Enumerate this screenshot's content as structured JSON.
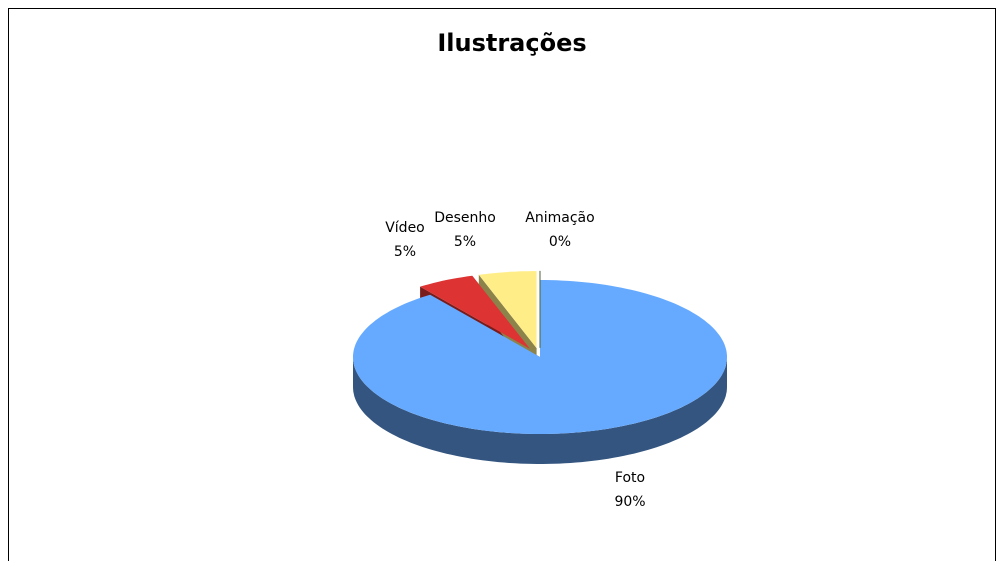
{
  "chart_data": {
    "type": "pie3d",
    "title": "Ilustrações",
    "categories": [
      "Foto",
      "Vídeo",
      "Desenho",
      "Animação"
    ],
    "values": [
      90,
      5,
      5,
      0
    ],
    "value_labels": [
      "90%",
      "5%",
      "5%",
      "0%"
    ],
    "colors": [
      "#66aaff",
      "#dd3333",
      "#ffee88",
      "#99cc66"
    ]
  }
}
